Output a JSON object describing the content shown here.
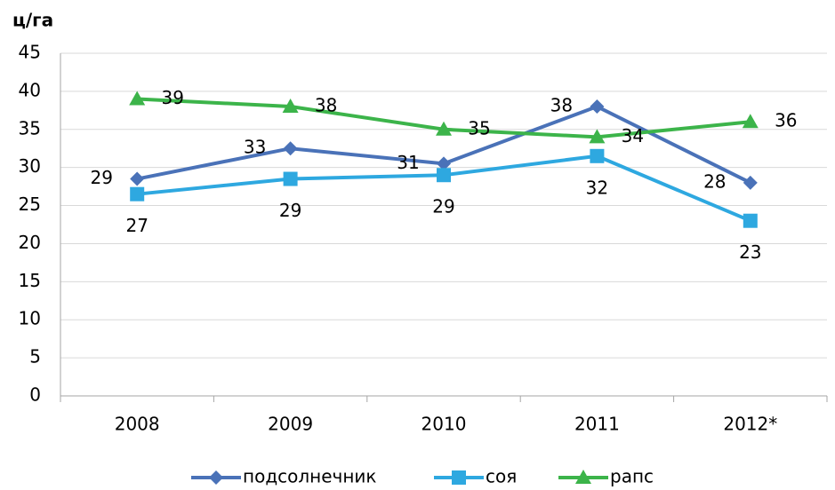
{
  "chart_data": {
    "type": "line",
    "y_label": "ц/га",
    "categories": [
      "2008",
      "2009",
      "2010",
      "2011",
      "2012*"
    ],
    "series": [
      {
        "name": "подсолнечник",
        "color": "#4a72b8",
        "marker": "diamond",
        "values": [
          28.5,
          32.5,
          30.5,
          38,
          28
        ],
        "value_labels": [
          "29",
          "33",
          "31",
          "38",
          "28"
        ]
      },
      {
        "name": "соя",
        "color": "#2ea8e0",
        "marker": "square",
        "values": [
          26.5,
          28.5,
          29,
          31.5,
          23
        ],
        "value_labels": [
          "27",
          "29",
          "29",
          "32",
          "23"
        ]
      },
      {
        "name": "рапс",
        "color": "#3cb44a",
        "marker": "triangle",
        "values": [
          39,
          38,
          35,
          34,
          36
        ],
        "value_labels": [
          "39",
          "38",
          "35",
          "34",
          "36"
        ]
      }
    ],
    "ylim": [
      0,
      45
    ],
    "yticks": [
      0,
      5,
      10,
      15,
      20,
      25,
      30,
      35,
      40,
      45
    ],
    "grid": true,
    "legend": "bottom"
  }
}
